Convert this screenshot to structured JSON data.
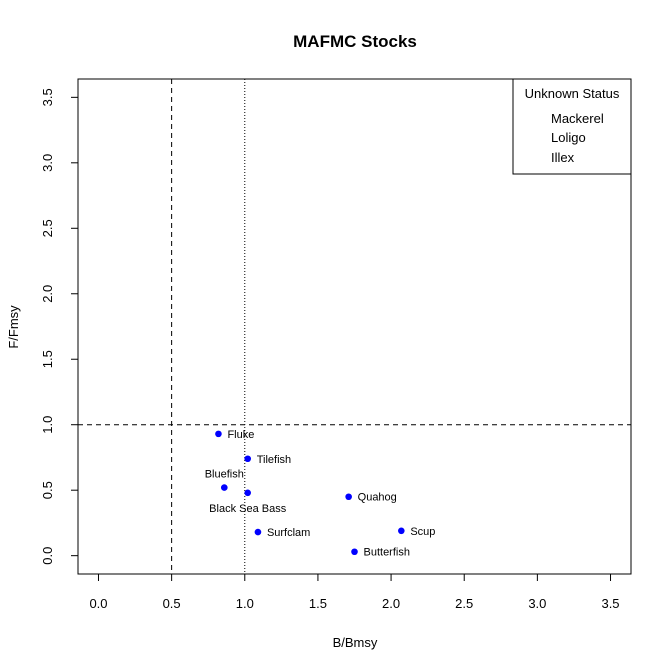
{
  "chart_data": {
    "type": "scatter",
    "title": "MAFMC Stocks",
    "xlabel": "B/Bmsy",
    "ylabel": "F/Fmsy",
    "xlim": [
      -0.14,
      3.64
    ],
    "ylim": [
      -0.14,
      3.64
    ],
    "xticks": [
      "0.0",
      "0.5",
      "1.0",
      "1.5",
      "2.0",
      "2.5",
      "3.0",
      "3.5"
    ],
    "yticks": [
      "0.0",
      "0.5",
      "1.0",
      "1.5",
      "2.0",
      "2.5",
      "3.0",
      "3.5"
    ],
    "reference_lines": [
      {
        "axis": "x",
        "value": 0.5,
        "style": "dashed"
      },
      {
        "axis": "x",
        "value": 1.0,
        "style": "dotted"
      },
      {
        "axis": "y",
        "value": 1.0,
        "style": "dashed"
      }
    ],
    "point_color": "#0000ff",
    "points": [
      {
        "name": "Fluke",
        "x": 0.82,
        "y": 0.93,
        "label_pos": "right"
      },
      {
        "name": "Tilefish",
        "x": 1.02,
        "y": 0.74,
        "label_pos": "right"
      },
      {
        "name": "Bluefish",
        "x": 0.86,
        "y": 0.52,
        "label_pos": "above"
      },
      {
        "name": "Black Sea Bass",
        "x": 1.02,
        "y": 0.48,
        "label_pos": "below"
      },
      {
        "name": "Quahog",
        "x": 1.71,
        "y": 0.45,
        "label_pos": "right"
      },
      {
        "name": "Scup",
        "x": 2.07,
        "y": 0.19,
        "label_pos": "right"
      },
      {
        "name": "Surfclam",
        "x": 1.09,
        "y": 0.18,
        "label_pos": "right"
      },
      {
        "name": "Butterfish",
        "x": 1.75,
        "y": 0.03,
        "label_pos": "right"
      }
    ],
    "legend": {
      "title": "Unknown Status",
      "entries": [
        "Mackerel",
        "Loligo",
        "Illex"
      ],
      "position": "top-right"
    }
  }
}
